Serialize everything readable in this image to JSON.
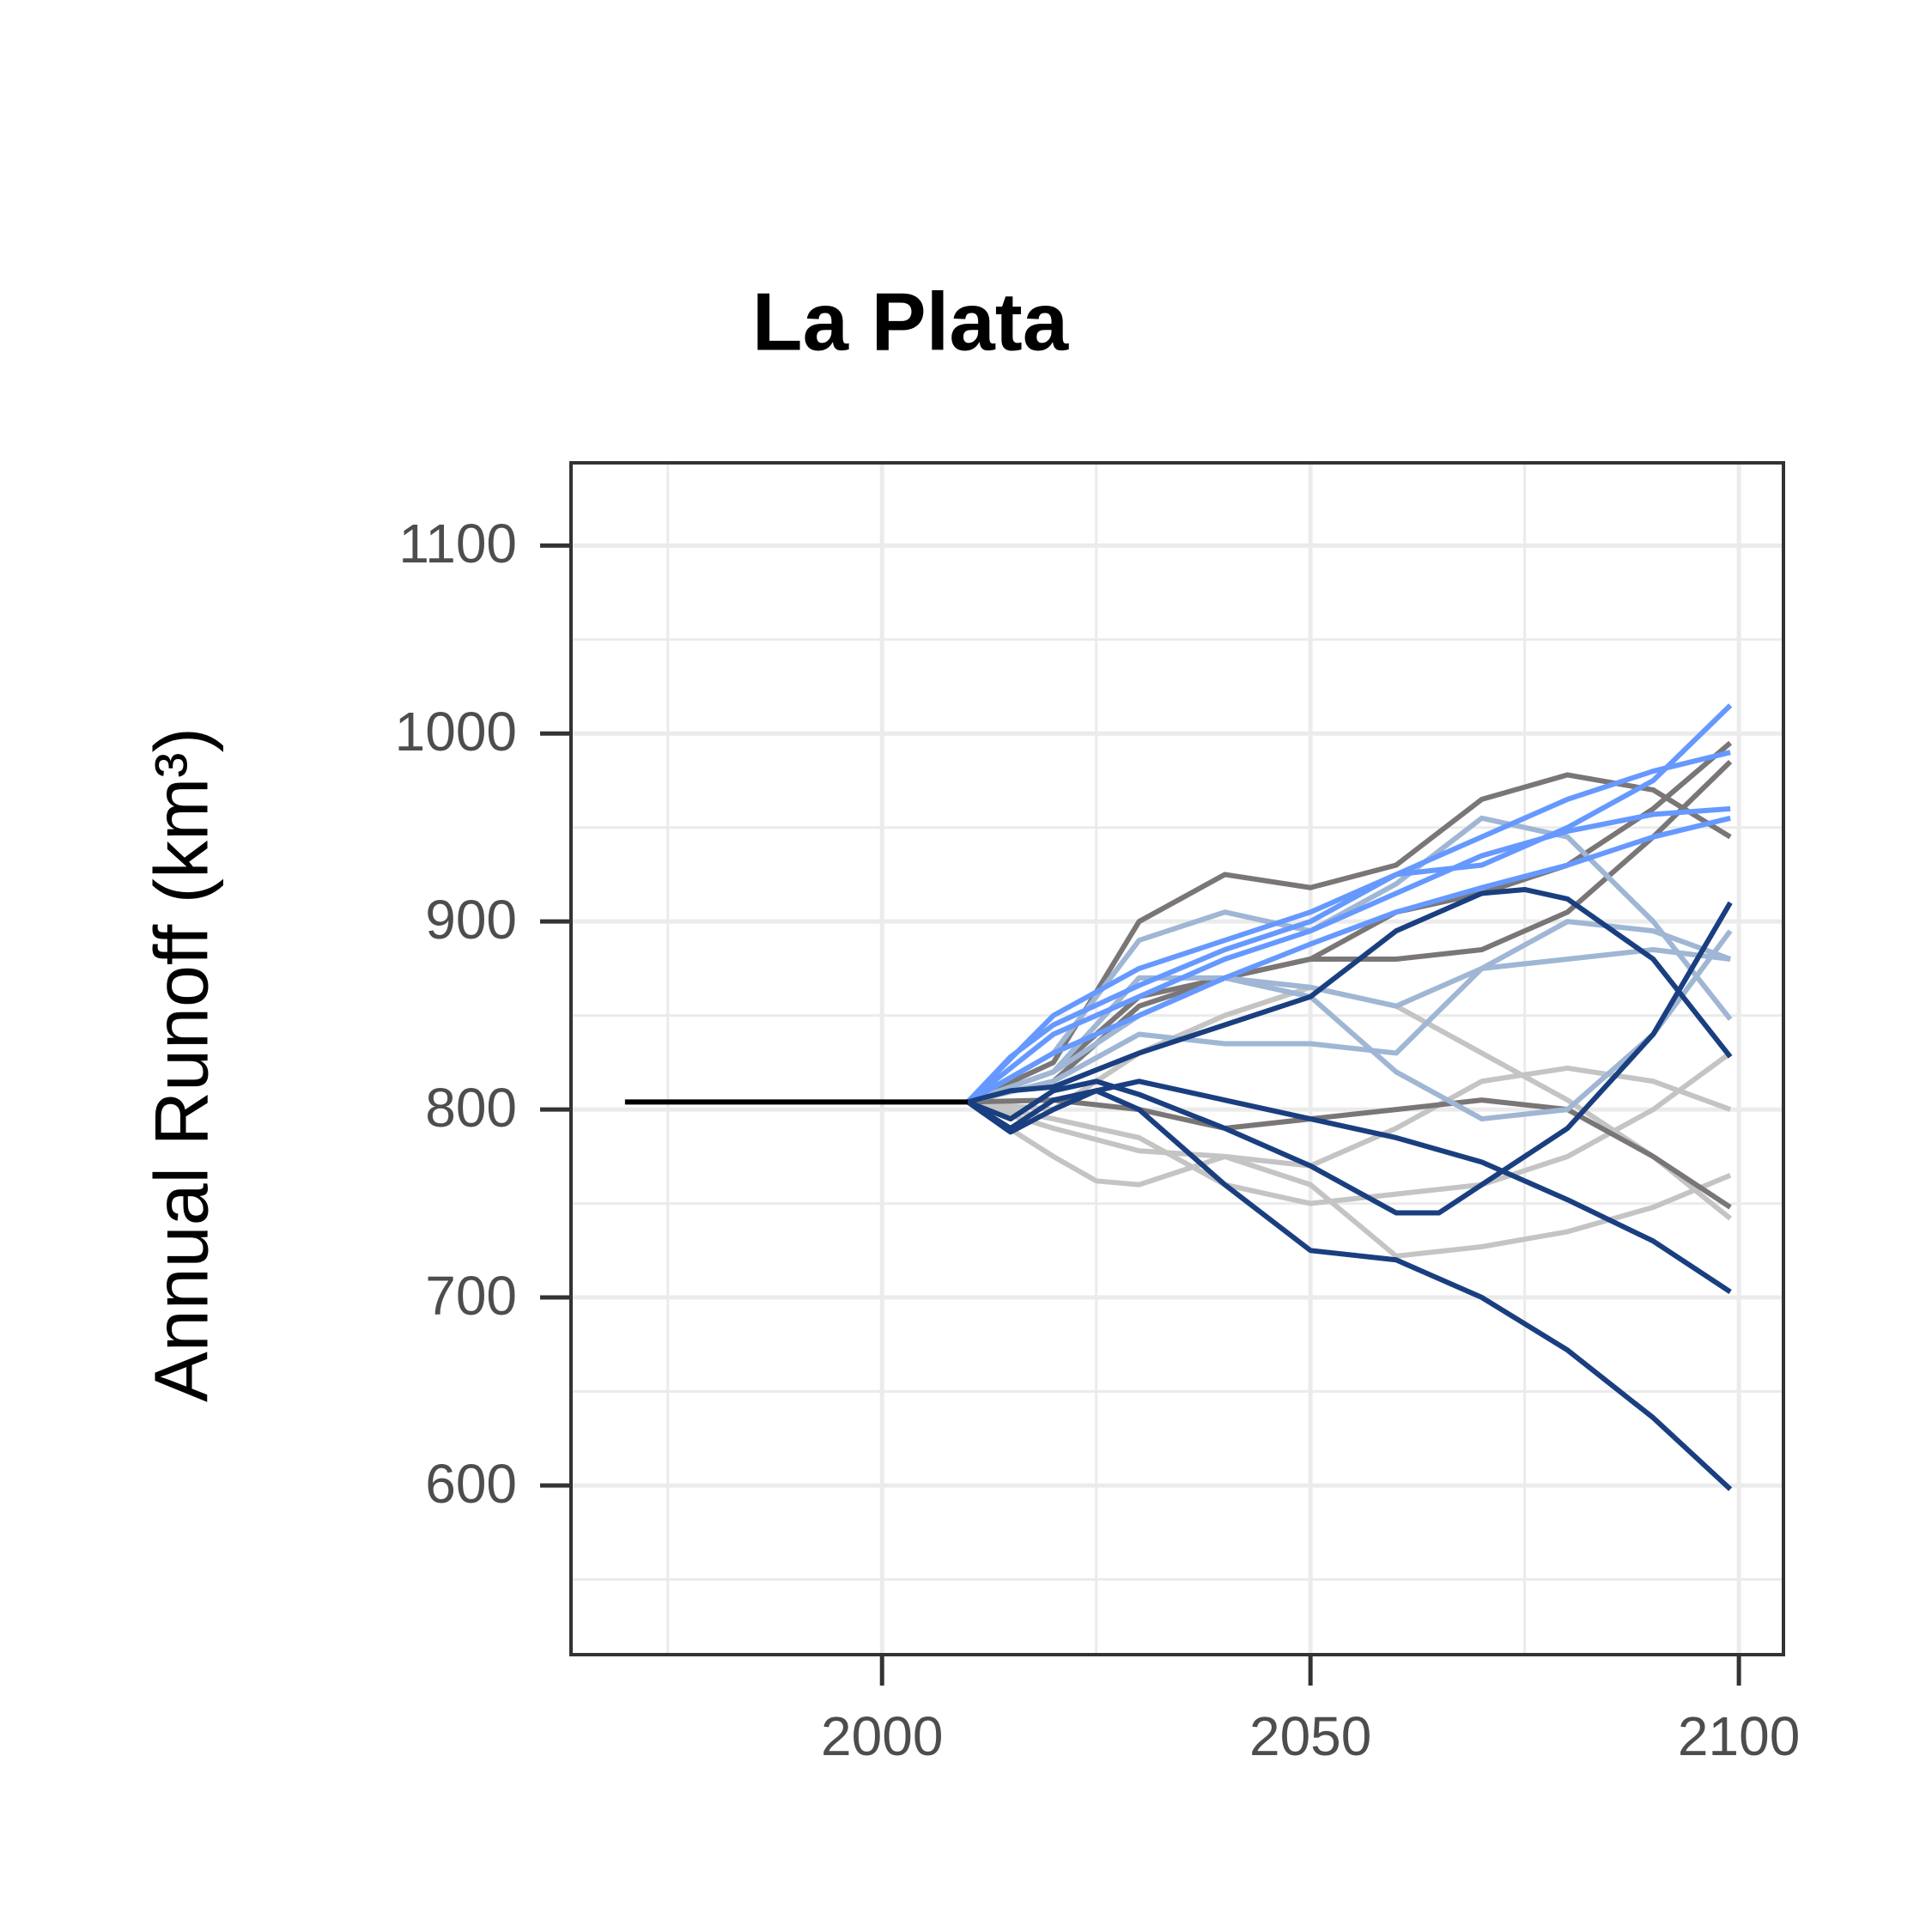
{
  "chart_data": {
    "type": "line",
    "title": "La Plata",
    "y_label": "Annual Runoff (km³)",
    "xlim": [
      1963.7,
      2105.2
    ],
    "xticks": [
      2000,
      2050,
      2100
    ],
    "ylim": [
      510,
      1144
    ],
    "yticks": [
      600,
      700,
      800,
      900,
      1000,
      1100
    ],
    "grid": true,
    "minor_grid": true,
    "series": [
      {
        "color": "#c4c4c4",
        "x": [
          2010,
          2020,
          2030,
          2040,
          2050,
          2060,
          2070,
          2080,
          2090,
          2099
        ],
        "values": [
          804,
          790,
          778,
          775,
          770,
          790,
          815,
          822,
          815,
          800
        ]
      },
      {
        "color": "#c4c4c4",
        "x": [
          2010,
          2020,
          2025,
          2030,
          2040,
          2050,
          2060,
          2070,
          2080,
          2090,
          2099
        ],
        "values": [
          804,
          775,
          762,
          760,
          775,
          760,
          722,
          727,
          735,
          748,
          765
        ]
      },
      {
        "color": "#c4c4c4",
        "x": [
          2010,
          2020,
          2030,
          2040,
          2050,
          2060,
          2070,
          2080,
          2090,
          2099
        ],
        "values": [
          804,
          800,
          830,
          850,
          865,
          855,
          830,
          805,
          775,
          742
        ]
      },
      {
        "color": "#c4c4c4",
        "x": [
          2010,
          2020,
          2030,
          2040,
          2050,
          2060,
          2070,
          2080,
          2090,
          2099
        ],
        "values": [
          804,
          795,
          785,
          760,
          750,
          755,
          760,
          775,
          800,
          830
        ]
      },
      {
        "color": "#7a7676",
        "x": [
          2010,
          2020,
          2030,
          2040,
          2050,
          2060,
          2070,
          2080,
          2090,
          2099
        ],
        "values": [
          804,
          825,
          900,
          925,
          918,
          930,
          965,
          978,
          970,
          945
        ]
      },
      {
        "color": "#7a7676",
        "x": [
          2010,
          2020,
          2030,
          2040,
          2050,
          2060,
          2070,
          2080,
          2090,
          2099
        ],
        "values": [
          804,
          820,
          860,
          870,
          880,
          880,
          885,
          905,
          945,
          985
        ]
      },
      {
        "color": "#7a7676",
        "x": [
          2010,
          2020,
          2030,
          2040,
          2050,
          2060,
          2070,
          2080,
          2090,
          2099
        ],
        "values": [
          804,
          805,
          800,
          790,
          795,
          800,
          805,
          800,
          775,
          748
        ]
      },
      {
        "color": "#7a7676",
        "x": [
          2010,
          2020,
          2030,
          2040,
          2050,
          2060,
          2070,
          2080,
          2090,
          2099
        ],
        "values": [
          804,
          815,
          855,
          870,
          880,
          905,
          915,
          930,
          960,
          995
        ]
      },
      {
        "color": "#9fb6d4",
        "x": [
          2010,
          2020,
          2030,
          2040,
          2050,
          2060,
          2070,
          2080,
          2090,
          2099
        ],
        "values": [
          804,
          830,
          890,
          905,
          895,
          920,
          955,
          945,
          900,
          848
        ]
      },
      {
        "color": "#9fb6d4",
        "x": [
          2010,
          2020,
          2030,
          2040,
          2050,
          2060,
          2070,
          2080,
          2090,
          2099
        ],
        "values": [
          804,
          820,
          870,
          870,
          865,
          855,
          875,
          900,
          895,
          880
        ]
      },
      {
        "color": "#9fb6d4",
        "x": [
          2010,
          2020,
          2030,
          2040,
          2050,
          2060,
          2070,
          2080,
          2090,
          2099
        ],
        "values": [
          804,
          815,
          840,
          835,
          835,
          830,
          875,
          880,
          885,
          880
        ]
      },
      {
        "color": "#9fb6d4",
        "x": [
          2010,
          2020,
          2030,
          2040,
          2050,
          2060,
          2070,
          2080,
          2090,
          2099
        ],
        "values": [
          804,
          820,
          850,
          870,
          860,
          820,
          795,
          800,
          840,
          895
        ]
      },
      {
        "color": "#6699ff",
        "x": [
          2010,
          2020,
          2030,
          2040,
          2050,
          2060,
          2070,
          2080,
          2090,
          2099
        ],
        "values": [
          804,
          850,
          875,
          890,
          905,
          925,
          930,
          950,
          975,
          1015
        ]
      },
      {
        "color": "#6699ff",
        "x": [
          2010,
          2015,
          2020,
          2030,
          2040,
          2050,
          2060,
          2070,
          2080,
          2090,
          2099
        ],
        "values": [
          804,
          828,
          845,
          866,
          885,
          900,
          925,
          945,
          965,
          980,
          990
        ]
      },
      {
        "color": "#6699ff",
        "x": [
          2010,
          2020,
          2030,
          2040,
          2050,
          2060,
          2070,
          2080,
          2090,
          2099
        ],
        "values": [
          804,
          840,
          860,
          880,
          895,
          915,
          935,
          948,
          957,
          960
        ]
      },
      {
        "color": "#6699ff",
        "x": [
          2010,
          2020,
          2030,
          2040,
          2050,
          2060,
          2070,
          2080,
          2090,
          2099
        ],
        "values": [
          804,
          830,
          850,
          870,
          888,
          905,
          918,
          930,
          945,
          955
        ]
      },
      {
        "color": "#1a3f80",
        "x": [
          2010,
          2015,
          2020,
          2030,
          2040,
          2050,
          2060,
          2070,
          2075,
          2080,
          2090,
          2099
        ],
        "values": [
          804,
          810,
          812,
          830,
          845,
          860,
          895,
          915,
          917,
          912,
          880,
          828
        ]
      },
      {
        "color": "#1a3f80",
        "x": [
          2010,
          2015,
          2020,
          2025,
          2030,
          2040,
          2050,
          2060,
          2065,
          2070,
          2080,
          2090,
          2099
        ],
        "values": [
          804,
          795,
          810,
          815,
          808,
          790,
          770,
          745,
          745,
          760,
          790,
          840,
          910
        ]
      },
      {
        "color": "#1a3f80",
        "x": [
          2010,
          2015,
          2020,
          2030,
          2040,
          2050,
          2060,
          2070,
          2080,
          2090,
          2099
        ],
        "values": [
          804,
          790,
          805,
          815,
          805,
          795,
          785,
          772,
          752,
          730,
          703
        ]
      },
      {
        "color": "#1a3f80",
        "x": [
          2010,
          2015,
          2020,
          2025,
          2030,
          2040,
          2050,
          2060,
          2070,
          2080,
          2090,
          2099
        ],
        "values": [
          804,
          788,
          800,
          810,
          800,
          760,
          725,
          720,
          700,
          672,
          636,
          598
        ]
      },
      {
        "color": "#000000",
        "x": [
          1970,
          2010
        ],
        "values": [
          804,
          804
        ]
      }
    ]
  }
}
